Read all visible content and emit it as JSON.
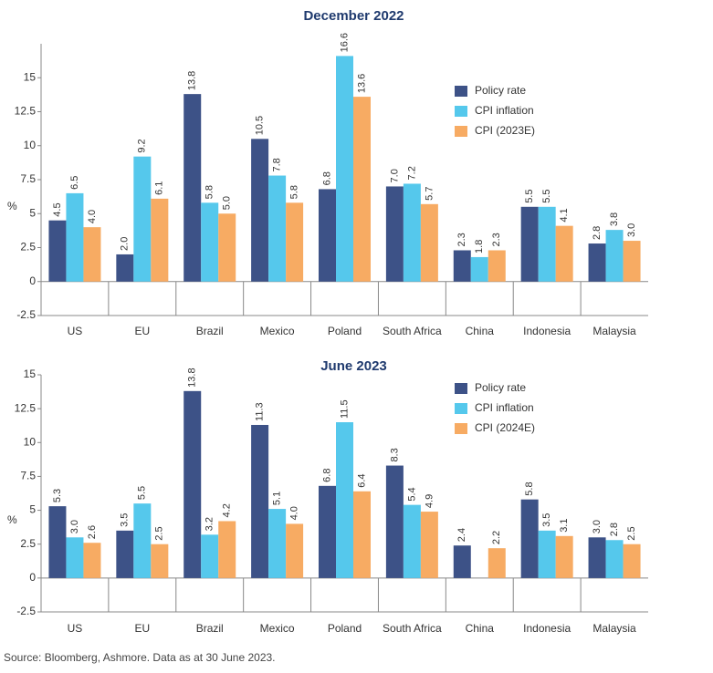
{
  "chart_data": [
    {
      "type": "bar",
      "title": "December 2022",
      "y_label": "%",
      "categories": [
        "US",
        "EU",
        "Brazil",
        "Mexico",
        "Poland",
        "South Africa",
        "China",
        "Indonesia",
        "Malaysia"
      ],
      "series": [
        {
          "name": "Policy rate",
          "color": "#3d5287",
          "values": [
            4.5,
            2,
            13.8,
            10.5,
            6.8,
            7,
            2.3,
            5.5,
            2.8
          ],
          "value_labels": [
            "4.5",
            "2.0",
            "13.8",
            "10.5",
            "6.8",
            "7.0",
            "2.3",
            "5.5",
            "2.8"
          ]
        },
        {
          "name": "CPI inflation",
          "color": "#55c8ec",
          "values": [
            6.5,
            9.2,
            5.8,
            7.8,
            16.6,
            7.2,
            1.8,
            5.5,
            3.8
          ],
          "value_labels": [
            "6.5",
            "9.2",
            "5.8",
            "7.8",
            "16.6",
            "7.2",
            "1.8",
            "5.5",
            "3.8"
          ]
        },
        {
          "name": "CPI (2023E)",
          "color": "#f7ab63",
          "values": [
            4,
            6.1,
            5,
            5.8,
            13.6,
            5.7,
            2.3,
            4.1,
            3
          ],
          "value_labels": [
            "4.0",
            "6.1",
            "5.0",
            "5.8",
            "13.6",
            "5.7",
            "2.3",
            "4.1",
            "3.0"
          ]
        }
      ],
      "ylim": [
        -2.5,
        17.5
      ],
      "yticks": [
        -2.5,
        0,
        2.5,
        5,
        7.5,
        10,
        12.5,
        15
      ]
    },
    {
      "type": "bar",
      "title": "June 2023",
      "y_label": "%",
      "categories": [
        "US",
        "EU",
        "Brazil",
        "Mexico",
        "Poland",
        "South Africa",
        "China",
        "Indonesia",
        "Malaysia"
      ],
      "series": [
        {
          "name": "Policy rate",
          "color": "#3d5287",
          "values": [
            5.3,
            3.5,
            13.8,
            11.3,
            6.8,
            8.3,
            2.4,
            5.8,
            3
          ],
          "value_labels": [
            "5.3",
            "3.5",
            "13.8",
            "11.3",
            "6.8",
            "8.3",
            "2.4",
            "5.8",
            "3.0"
          ]
        },
        {
          "name": "CPI inflation",
          "color": "#55c8ec",
          "values": [
            3,
            5.5,
            3.2,
            5.1,
            11.5,
            5.4,
            null,
            3.5,
            2.8
          ],
          "value_labels": [
            "3.0",
            "5.5",
            "3.2",
            "5.1",
            "11.5",
            "5.4",
            null,
            "3.5",
            "2.8"
          ]
        },
        {
          "name": "CPI (2024E)",
          "color": "#f7ab63",
          "values": [
            2.6,
            2.5,
            4.2,
            4,
            6.4,
            4.9,
            2.2,
            3.1,
            2.5
          ],
          "value_labels": [
            "2.6",
            "2.5",
            "4.2",
            "4.0",
            "6.4",
            "4.9",
            "2.2",
            "3.1",
            "2.5"
          ]
        }
      ],
      "ylim": [
        -2.5,
        15
      ],
      "yticks": [
        -2.5,
        0,
        2.5,
        5,
        7.5,
        10,
        12.5,
        15
      ]
    }
  ],
  "source": "Source: Bloomberg, Ashmore. Data as at 30 June 2023."
}
